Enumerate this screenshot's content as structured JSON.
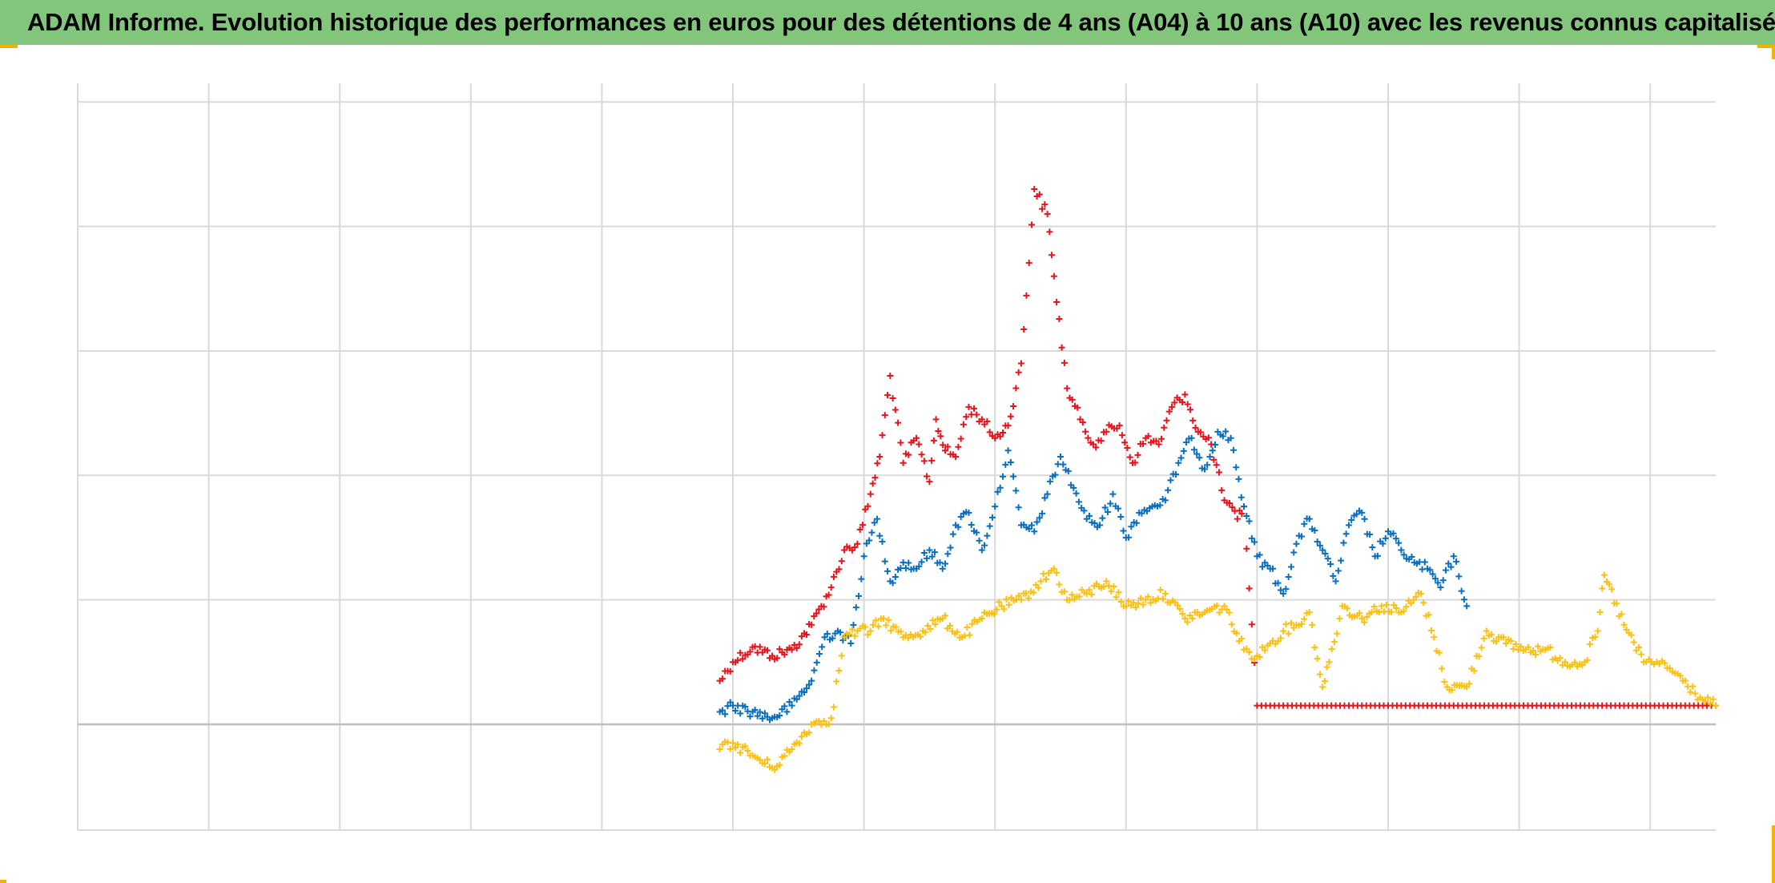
{
  "title": "ADAM Informe. Evolution historique des performances en euros pour des détentions de 4 ans (A04) à 10 ans (A10) avec les revenus connus capitalisés",
  "colors": {
    "title_background": "#82c67c",
    "series_red": "#e8141c",
    "series_blue": "#0a6fbf",
    "series_yellow": "#fcc010",
    "grid": "#d9d9d9",
    "baseline": "#bfbfbf",
    "frame_accent": "#f0b400"
  },
  "chart_data": {
    "type": "scatter",
    "marker": "plus",
    "xlim": [
      0,
      12.5
    ],
    "ylim": [
      -0.85,
      5.15
    ],
    "baseline_y": 0,
    "grid": true,
    "x_gridlines": [
      0,
      1,
      2,
      3,
      4,
      5,
      6,
      7,
      8,
      9,
      10,
      11,
      12
    ],
    "y_gridlines": [
      0,
      1,
      2,
      3,
      4,
      5
    ],
    "tick_labels_visible": false,
    "legend": "none",
    "series": [
      {
        "color": "#e8141c",
        "x": [
          4.9,
          5.0,
          5.15,
          5.3,
          5.45,
          5.6,
          5.75,
          5.85,
          5.95,
          6.05,
          6.12,
          6.2,
          6.3,
          6.4,
          6.5,
          6.55,
          6.62,
          6.7,
          6.8,
          6.9,
          7.0,
          7.1,
          7.2,
          7.3,
          7.4,
          7.45,
          7.55,
          7.65,
          7.75,
          7.85,
          7.95,
          8.05,
          8.15,
          8.25,
          8.35,
          8.45,
          8.55,
          8.65,
          8.75,
          8.85,
          8.9,
          9.0,
          9.1,
          9.2,
          9.3,
          9.4,
          9.5,
          9.6,
          9.7,
          9.8,
          9.9,
          10.0,
          10.1,
          10.2,
          10.3,
          10.4,
          10.5,
          10.6,
          10.7,
          10.8,
          10.9,
          11.0,
          11.1,
          11.2,
          11.3,
          11.4,
          11.5,
          11.6,
          11.7,
          11.8,
          11.9,
          12.0,
          12.1,
          12.2,
          12.3,
          12.4,
          12.5
        ],
        "y": [
          0.35,
          0.5,
          0.62,
          0.55,
          0.6,
          0.8,
          1.1,
          1.4,
          1.45,
          1.85,
          2.15,
          2.8,
          2.1,
          2.3,
          1.95,
          2.45,
          2.2,
          2.15,
          2.55,
          2.45,
          2.3,
          2.4,
          2.9,
          4.3,
          4.1,
          3.6,
          2.7,
          2.45,
          2.25,
          2.35,
          2.4,
          2.1,
          2.3,
          2.25,
          2.55,
          2.65,
          2.35,
          2.25,
          1.8,
          1.65,
          1.75,
          0.15,
          0.15,
          0.15,
          0.15,
          0.15,
          0.15,
          0.15,
          0.15,
          0.15,
          0.15,
          0.15,
          0.15,
          0.15,
          0.15,
          0.15,
          0.15,
          0.15,
          0.15,
          0.15,
          0.15,
          0.15,
          0.15,
          0.15,
          0.15,
          0.15,
          0.15,
          0.15,
          0.15,
          0.15,
          0.15,
          0.15,
          0.15,
          0.15,
          0.15,
          0.15,
          0.15
        ]
      },
      {
        "color": "#0a6fbf",
        "x": [
          4.9,
          5.0,
          5.15,
          5.3,
          5.45,
          5.6,
          5.7,
          5.8,
          5.9,
          6.0,
          6.1,
          6.2,
          6.3,
          6.4,
          6.5,
          6.6,
          6.7,
          6.8,
          6.9,
          7.0,
          7.1,
          7.2,
          7.3,
          7.4,
          7.5,
          7.6,
          7.7,
          7.8,
          7.9,
          8.0,
          8.1,
          8.2,
          8.3,
          8.4,
          8.5,
          8.6,
          8.7,
          8.8,
          8.9,
          9.0,
          9.1,
          9.2,
          9.3,
          9.4,
          9.5,
          9.6,
          9.7,
          9.8,
          9.9,
          10.0,
          10.1,
          10.2,
          10.3,
          10.4,
          10.5,
          10.6
        ],
        "y": [
          0.1,
          0.15,
          0.1,
          0.05,
          0.15,
          0.35,
          0.7,
          0.75,
          0.65,
          1.35,
          1.65,
          1.15,
          1.3,
          1.25,
          1.4,
          1.25,
          1.6,
          1.7,
          1.4,
          1.75,
          2.2,
          1.6,
          1.55,
          1.85,
          2.15,
          1.9,
          1.65,
          1.6,
          1.85,
          1.5,
          1.7,
          1.75,
          1.8,
          2.1,
          2.3,
          2.05,
          2.35,
          2.3,
          1.75,
          1.35,
          1.25,
          1.05,
          1.45,
          1.65,
          1.4,
          1.15,
          1.6,
          1.7,
          1.35,
          1.55,
          1.4,
          1.3,
          1.25,
          1.1,
          1.35,
          0.95
        ]
      },
      {
        "color": "#fcc010",
        "x": [
          4.9,
          5.0,
          5.15,
          5.3,
          5.45,
          5.6,
          5.75,
          5.85,
          5.95,
          6.05,
          6.15,
          6.3,
          6.45,
          6.6,
          6.75,
          6.9,
          7.05,
          7.2,
          7.35,
          7.45,
          7.55,
          7.7,
          7.85,
          8.0,
          8.15,
          8.3,
          8.45,
          8.6,
          8.75,
          8.9,
          9.0,
          9.1,
          9.2,
          9.3,
          9.4,
          9.5,
          9.55,
          9.65,
          9.8,
          9.95,
          10.1,
          10.25,
          10.35,
          10.45,
          10.6,
          10.75,
          10.9,
          11.05,
          11.2,
          11.35,
          11.5,
          11.6,
          11.65,
          11.8,
          11.95,
          12.05,
          12.15,
          12.25,
          12.4,
          12.5
        ],
        "y": [
          -0.2,
          -0.15,
          -0.25,
          -0.35,
          -0.2,
          0.0,
          0.05,
          0.7,
          0.75,
          0.75,
          0.85,
          0.7,
          0.75,
          0.85,
          0.7,
          0.85,
          0.95,
          1.0,
          1.15,
          1.25,
          1.0,
          1.05,
          1.15,
          0.95,
          1.0,
          1.05,
          0.85,
          0.9,
          0.95,
          0.6,
          0.55,
          0.65,
          0.75,
          0.8,
          0.9,
          0.3,
          0.5,
          0.95,
          0.85,
          0.95,
          0.9,
          1.05,
          0.7,
          0.3,
          0.3,
          0.75,
          0.65,
          0.6,
          0.6,
          0.5,
          0.5,
          0.75,
          1.2,
          0.8,
          0.5,
          0.5,
          0.45,
          0.35,
          0.2,
          0.15
        ]
      }
    ]
  }
}
